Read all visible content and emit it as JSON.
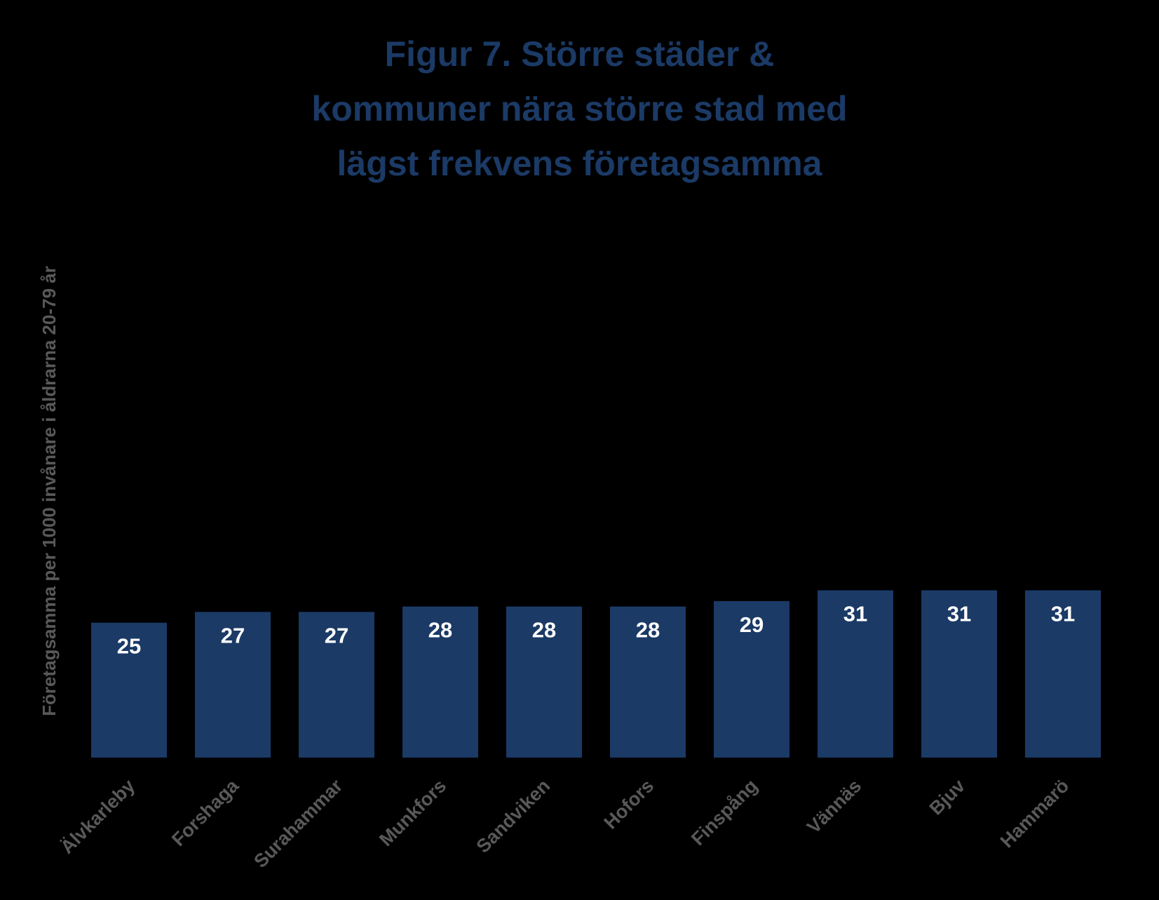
{
  "chart_data": {
    "type": "bar",
    "title": "Figur 7. Större städer &\nkommuner nära större stad med\nlägst frekvens företagsamma",
    "xlabel": "",
    "ylabel": "Företagsamma per 1000 invånare i åldrarna 20-79 år",
    "categories": [
      "Älvkarleby",
      "Forshaga",
      "Surahammar",
      "Munkfors",
      "Sandviken",
      "Hofors",
      "Finspång",
      "Vännäs",
      "Bjuv",
      "Hammarö"
    ],
    "values": [
      25,
      27,
      27,
      28,
      28,
      28,
      29,
      31,
      31,
      31
    ],
    "data_labels": [
      "25",
      "27",
      "27",
      "28",
      "28",
      "28",
      "29",
      "31",
      "31",
      "31"
    ],
    "ylim": [
      0,
      31.2
    ],
    "grid": false,
    "legend": "none",
    "colors": {
      "bar": "#1b3a66",
      "title": "#1b3a66",
      "axis_text": "#595959",
      "data_label": "#ffffff",
      "background": "#000000"
    }
  }
}
